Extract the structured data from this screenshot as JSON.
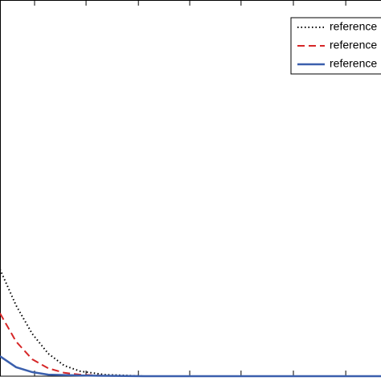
{
  "chart_data": {
    "type": "line",
    "x": [
      0,
      0.31,
      0.62,
      0.93,
      1.24,
      1.55,
      2.02,
      2.79,
      7.35
    ],
    "series": [
      {
        "name": "reference",
        "color": "#000000",
        "dash": "dotted",
        "values": [
          0.284,
          0.188,
          0.113,
          0.06,
          0.028,
          0.013,
          0.004,
          0,
          0
        ]
      },
      {
        "name": "reference",
        "color": "#d62728",
        "dash": "dashed",
        "values": [
          0.167,
          0.092,
          0.045,
          0.021,
          0.009,
          0.004,
          0.001,
          0,
          0
        ]
      },
      {
        "name": "reference",
        "color": "#3a5fad",
        "dash": "solid",
        "values": [
          0.053,
          0.024,
          0.011,
          0.004,
          0.003,
          0.002,
          0.001,
          0,
          0
        ]
      }
    ],
    "xlim": [
      0,
      7.35
    ],
    "xticks": [
      0.667,
      1.66,
      2.67,
      3.66,
      4.65,
      5.66,
      6.67
    ],
    "ylim": [
      0,
      1
    ],
    "legend": "upper right"
  }
}
